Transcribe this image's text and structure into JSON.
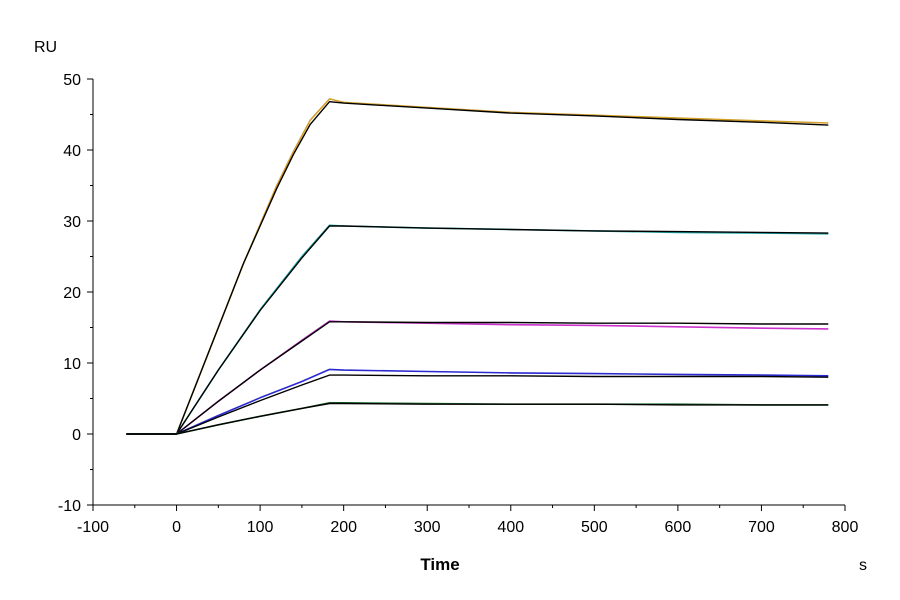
{
  "chart_data": {
    "type": "line",
    "title": "",
    "xlabel": "Time",
    "ylabel": "RU",
    "x_unit": "s",
    "xlim": [
      -100,
      800
    ],
    "ylim": [
      -10,
      50
    ],
    "x_ticks": [
      -100,
      0,
      100,
      200,
      300,
      400,
      500,
      600,
      700,
      800
    ],
    "y_ticks": [
      -10,
      0,
      10,
      20,
      30,
      40,
      50
    ],
    "grid": false,
    "legend": "none",
    "series": [
      {
        "color": "#d4a02c",
        "role": "measured",
        "x": [
          -60,
          0,
          20,
          40,
          60,
          80,
          100,
          120,
          140,
          160,
          183,
          200,
          300,
          400,
          500,
          600,
          700,
          780
        ],
        "y": [
          0,
          0,
          6,
          12,
          18,
          24,
          29.5,
          35,
          39.8,
          44.2,
          47.2,
          46.7,
          46.0,
          45.3,
          44.9,
          44.5,
          44.1,
          43.8
        ]
      },
      {
        "color": "#000000",
        "role": "fit",
        "x": [
          -60,
          0,
          20,
          40,
          60,
          80,
          100,
          120,
          140,
          160,
          183,
          200,
          300,
          400,
          500,
          600,
          700,
          780
        ],
        "y": [
          0,
          0,
          6,
          12,
          18,
          24,
          29.3,
          34.6,
          39.4,
          43.6,
          46.8,
          46.6,
          45.9,
          45.2,
          44.8,
          44.3,
          43.9,
          43.5
        ]
      },
      {
        "color": "#1aa6a6",
        "role": "measured",
        "x": [
          -60,
          0,
          50,
          100,
          150,
          183,
          200,
          300,
          400,
          500,
          600,
          700,
          780
        ],
        "y": [
          0,
          0,
          9,
          17.5,
          25,
          29.4,
          29.3,
          29.0,
          28.8,
          28.6,
          28.4,
          28.3,
          28.2
        ]
      },
      {
        "color": "#000000",
        "role": "fit",
        "x": [
          -60,
          0,
          50,
          100,
          150,
          183,
          200,
          300,
          400,
          500,
          600,
          700,
          780
        ],
        "y": [
          0,
          0,
          9,
          17.4,
          24.8,
          29.3,
          29.3,
          29.0,
          28.8,
          28.6,
          28.5,
          28.4,
          28.3
        ]
      },
      {
        "color": "#cc33cc",
        "role": "measured",
        "x": [
          -60,
          0,
          50,
          100,
          150,
          183,
          200,
          300,
          400,
          500,
          600,
          700,
          780
        ],
        "y": [
          0,
          0,
          4.6,
          9.0,
          13.2,
          15.9,
          15.8,
          15.6,
          15.4,
          15.3,
          15.1,
          14.9,
          14.8
        ]
      },
      {
        "color": "#000000",
        "role": "fit",
        "x": [
          -60,
          0,
          50,
          100,
          150,
          183,
          200,
          300,
          400,
          500,
          600,
          700,
          780
        ],
        "y": [
          0,
          0,
          4.6,
          9.0,
          13.1,
          15.8,
          15.8,
          15.7,
          15.7,
          15.6,
          15.6,
          15.5,
          15.5
        ]
      },
      {
        "color": "#2a2ad0",
        "role": "measured",
        "x": [
          -60,
          0,
          50,
          100,
          150,
          183,
          200,
          300,
          400,
          500,
          600,
          700,
          780
        ],
        "y": [
          0,
          0,
          2.6,
          5.1,
          7.4,
          9.1,
          9.0,
          8.8,
          8.6,
          8.5,
          8.4,
          8.3,
          8.2
        ]
      },
      {
        "color": "#000000",
        "role": "fit",
        "x": [
          -60,
          0,
          50,
          100,
          150,
          183,
          200,
          300,
          400,
          500,
          600,
          700,
          780
        ],
        "y": [
          0,
          0,
          2.4,
          4.7,
          6.9,
          8.3,
          8.3,
          8.2,
          8.2,
          8.1,
          8.1,
          8.1,
          8.0
        ]
      },
      {
        "color": "#1f6b2a",
        "role": "measured",
        "x": [
          -60,
          0,
          50,
          100,
          150,
          183,
          200,
          300,
          400,
          500,
          600,
          700,
          780
        ],
        "y": [
          0,
          0,
          1.3,
          2.5,
          3.6,
          4.4,
          4.4,
          4.3,
          4.2,
          4.2,
          4.2,
          4.1,
          4.1
        ]
      },
      {
        "color": "#000000",
        "role": "fit",
        "x": [
          -60,
          0,
          50,
          100,
          150,
          183,
          200,
          300,
          400,
          500,
          600,
          700,
          780
        ],
        "y": [
          0,
          0,
          1.3,
          2.5,
          3.6,
          4.3,
          4.3,
          4.2,
          4.2,
          4.2,
          4.1,
          4.1,
          4.1
        ]
      }
    ]
  }
}
